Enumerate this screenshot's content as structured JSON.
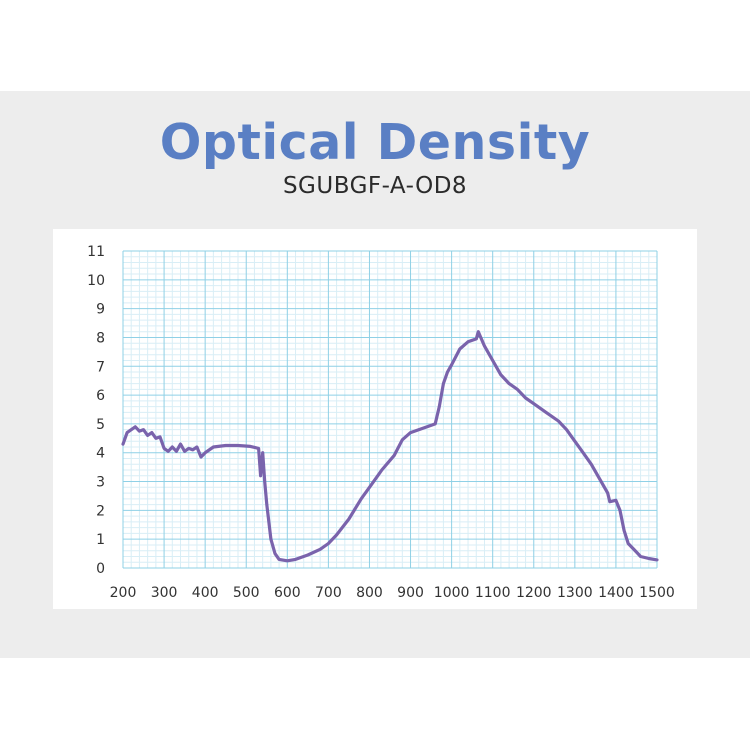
{
  "header": {
    "title": "Optical Density",
    "subtitle": "SGUBGF-A-OD8"
  },
  "colors": {
    "title": "#5a7fc4",
    "line": "#7a63ac",
    "grid_major": "#8fd0e6",
    "grid_minor": "#d9eef6",
    "background": "#ededed"
  },
  "chart_data": {
    "type": "line",
    "title": "",
    "xlabel": "",
    "ylabel": "",
    "xlim": [
      200,
      1500
    ],
    "ylim": [
      0,
      11
    ],
    "grid": true,
    "x_ticks": [
      "200",
      "300",
      "400",
      "500",
      "600",
      "700",
      "800",
      "900",
      "1000",
      "1100",
      "1200",
      "1300",
      "1400",
      "1500"
    ],
    "y_ticks": [
      "0",
      "1",
      "2",
      "3",
      "4",
      "5",
      "6",
      "7",
      "8",
      "9",
      "10",
      "11"
    ],
    "series": [
      {
        "points": [
          [
            200,
            4.3
          ],
          [
            210,
            4.7
          ],
          [
            220,
            4.8
          ],
          [
            230,
            4.9
          ],
          [
            240,
            4.75
          ],
          [
            250,
            4.8
          ],
          [
            260,
            4.6
          ],
          [
            270,
            4.7
          ],
          [
            280,
            4.5
          ],
          [
            290,
            4.55
          ],
          [
            300,
            4.15
          ],
          [
            310,
            4.05
          ],
          [
            320,
            4.2
          ],
          [
            330,
            4.05
          ],
          [
            340,
            4.3
          ],
          [
            350,
            4.05
          ],
          [
            360,
            4.15
          ],
          [
            370,
            4.1
          ],
          [
            380,
            4.2
          ],
          [
            390,
            3.85
          ],
          [
            400,
            4.0
          ],
          [
            420,
            4.2
          ],
          [
            450,
            4.25
          ],
          [
            480,
            4.25
          ],
          [
            510,
            4.22
          ],
          [
            530,
            4.15
          ],
          [
            535,
            3.2
          ],
          [
            540,
            4.0
          ],
          [
            545,
            3.0
          ],
          [
            550,
            2.2
          ],
          [
            560,
            1.0
          ],
          [
            570,
            0.5
          ],
          [
            580,
            0.3
          ],
          [
            600,
            0.25
          ],
          [
            620,
            0.3
          ],
          [
            650,
            0.45
          ],
          [
            680,
            0.65
          ],
          [
            700,
            0.85
          ],
          [
            720,
            1.15
          ],
          [
            750,
            1.7
          ],
          [
            780,
            2.4
          ],
          [
            800,
            2.8
          ],
          [
            830,
            3.4
          ],
          [
            860,
            3.9
          ],
          [
            880,
            4.45
          ],
          [
            900,
            4.7
          ],
          [
            930,
            4.85
          ],
          [
            960,
            5.0
          ],
          [
            970,
            5.6
          ],
          [
            980,
            6.4
          ],
          [
            990,
            6.8
          ],
          [
            1000,
            7.05
          ],
          [
            1020,
            7.6
          ],
          [
            1040,
            7.85
          ],
          [
            1060,
            7.95
          ],
          [
            1065,
            8.2
          ],
          [
            1080,
            7.7
          ],
          [
            1100,
            7.2
          ],
          [
            1120,
            6.7
          ],
          [
            1140,
            6.4
          ],
          [
            1160,
            6.2
          ],
          [
            1180,
            5.9
          ],
          [
            1200,
            5.7
          ],
          [
            1230,
            5.4
          ],
          [
            1260,
            5.1
          ],
          [
            1280,
            4.8
          ],
          [
            1300,
            4.4
          ],
          [
            1320,
            4.0
          ],
          [
            1340,
            3.6
          ],
          [
            1360,
            3.1
          ],
          [
            1380,
            2.6
          ],
          [
            1385,
            2.3
          ],
          [
            1400,
            2.35
          ],
          [
            1410,
            2.0
          ],
          [
            1420,
            1.3
          ],
          [
            1430,
            0.85
          ],
          [
            1450,
            0.55
          ],
          [
            1460,
            0.4
          ],
          [
            1480,
            0.33
          ],
          [
            1500,
            0.28
          ]
        ]
      }
    ]
  }
}
